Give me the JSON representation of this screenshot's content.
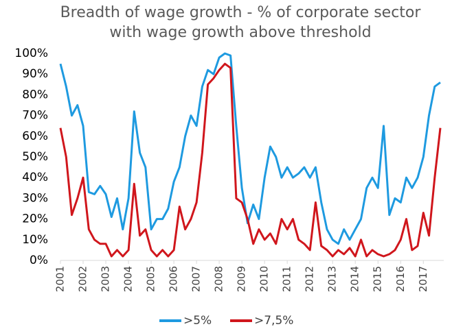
{
  "chart_data": {
    "type": "line",
    "title": "Breadth of wage growth - % of corporate sector with wage growth above threshold",
    "x": [
      2001,
      2001.25,
      2001.5,
      2001.75,
      2002,
      2002.25,
      2002.5,
      2002.75,
      2003,
      2003.25,
      2003.5,
      2003.75,
      2004,
      2004.25,
      2004.5,
      2004.75,
      2005,
      2005.25,
      2005.5,
      2005.75,
      2006,
      2006.25,
      2006.5,
      2006.75,
      2007,
      2007.25,
      2007.5,
      2007.75,
      2008,
      2008.25,
      2008.5,
      2008.75,
      2009,
      2009.25,
      2009.5,
      2009.75,
      2010,
      2010.25,
      2010.5,
      2010.75,
      2011,
      2011.25,
      2011.5,
      2011.75,
      2012,
      2012.25,
      2012.5,
      2012.75,
      2013,
      2013.25,
      2013.5,
      2013.75,
      2014,
      2014.25,
      2014.5,
      2014.75,
      2015,
      2015.25,
      2015.5,
      2015.75,
      2016,
      2016.25,
      2016.5,
      2016.75,
      2017,
      2017.25,
      2017.5,
      2017.75
    ],
    "series": [
      {
        "name": ">5%",
        "color": "#1e9ae0",
        "values": [
          95,
          84,
          70,
          75,
          65,
          33,
          32,
          36,
          32,
          21,
          30,
          15,
          30,
          72,
          52,
          45,
          15,
          20,
          20,
          25,
          38,
          45,
          60,
          70,
          65,
          84,
          92,
          90,
          98,
          100,
          99,
          65,
          35,
          18,
          27,
          20,
          40,
          55,
          50,
          40,
          45,
          40,
          42,
          45,
          40,
          45,
          28,
          15,
          10,
          8,
          15,
          10,
          15,
          20,
          35,
          40,
          35,
          65,
          22,
          30,
          28,
          40,
          35,
          40,
          50,
          70,
          84,
          86
        ]
      },
      {
        "name": ">7,5%",
        "color": "#d0161c",
        "values": [
          64,
          50,
          22,
          30,
          40,
          15,
          10,
          8,
          8,
          2,
          5,
          2,
          5,
          37,
          12,
          15,
          5,
          2,
          5,
          2,
          5,
          26,
          15,
          20,
          28,
          52,
          85,
          88,
          92,
          95,
          93,
          30,
          28,
          20,
          8,
          15,
          10,
          13,
          8,
          20,
          15,
          20,
          10,
          8,
          5,
          28,
          7,
          5,
          2,
          5,
          3,
          6,
          2,
          10,
          2,
          5,
          3,
          2,
          3,
          5,
          10,
          20,
          5,
          7,
          23,
          12,
          40,
          64
        ]
      }
    ],
    "xlim": [
      2001,
      2017.9
    ],
    "xticks": [
      2001,
      2002,
      2003,
      2004,
      2005,
      2006,
      2007,
      2008,
      2009,
      2010,
      2011,
      2012,
      2013,
      2014,
      2015,
      2016,
      2017
    ],
    "ylim": [
      0,
      100
    ],
    "yticks": [
      {
        "value": 0,
        "label": "0%"
      },
      {
        "value": 10,
        "label": "10%"
      },
      {
        "value": 20,
        "label": "20%"
      },
      {
        "value": 30,
        "label": "30%"
      },
      {
        "value": 40,
        "label": "40%"
      },
      {
        "value": 50,
        "label": "50%"
      },
      {
        "value": 60,
        "label": "60%"
      },
      {
        "value": 70,
        "label": "70%"
      },
      {
        "value": 80,
        "label": "80%"
      },
      {
        "value": 90,
        "label": "90%"
      },
      {
        "value": 100,
        "label": "100%"
      }
    ],
    "legend": "bottom"
  }
}
